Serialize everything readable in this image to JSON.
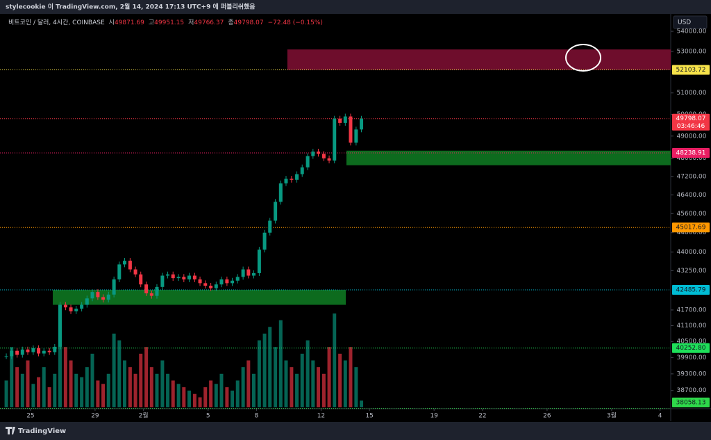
{
  "header": {
    "text": "stylecookie 이 TradingView.com, 2월 14, 2024 17:13 UTC+9 에 퍼블리쉬했음"
  },
  "footer": {
    "brand": "TradingView"
  },
  "chart_data": {
    "type": "candlestick",
    "symbol": "비트코인 / 달러, 4시간, COINBASE",
    "ohlc": [
      {
        "label": "시",
        "value": 49871.69
      },
      {
        "label": "고",
        "value": 49951.15
      },
      {
        "label": "저",
        "value": 49766.37
      },
      {
        "label": "종",
        "value": 49798.07
      }
    ],
    "change": "−72.48 (−0.15%)",
    "currency": "USD",
    "countdown": "03:46:46",
    "up_color": "#089981",
    "down_color": "#f23645",
    "log_scale": true,
    "xlim": [
      -1.89,
      39.66
    ],
    "ylim": [
      38050,
      54880
    ],
    "xticks": [
      {
        "value": 0,
        "label": "25"
      },
      {
        "value": 4,
        "label": "29"
      },
      {
        "value": 7,
        "label": "2월"
      },
      {
        "value": 11,
        "label": "5"
      },
      {
        "value": 14,
        "label": "8"
      },
      {
        "value": 18,
        "label": "12"
      },
      {
        "value": 21,
        "label": "15"
      },
      {
        "value": 25,
        "label": "19"
      },
      {
        "value": 28,
        "label": "22"
      },
      {
        "value": 32,
        "label": "26"
      },
      {
        "value": 36,
        "label": "3월"
      },
      {
        "value": 39,
        "label": "4"
      }
    ],
    "yticks": [
      {
        "value": 54000,
        "label": "54000.00"
      },
      {
        "value": 53000,
        "label": "53000.00"
      },
      {
        "value": 51000,
        "label": "51000.00"
      },
      {
        "value": 50000,
        "label": "50000.00"
      },
      {
        "value": 49000,
        "label": "49000.00"
      },
      {
        "value": 48000,
        "label": "48000.00"
      },
      {
        "value": 47200,
        "label": "47200.00"
      },
      {
        "value": 46400,
        "label": "46400.00"
      },
      {
        "value": 45600,
        "label": "45600.00"
      },
      {
        "value": 44800,
        "label": "44800.00"
      },
      {
        "value": 44000,
        "label": "44000.00"
      },
      {
        "value": 43250,
        "label": "43250.00"
      },
      {
        "value": 41700,
        "label": "41700.00"
      },
      {
        "value": 41100,
        "label": "41100.00"
      },
      {
        "value": 40500,
        "label": "40500.00"
      },
      {
        "value": 39900,
        "label": "39900.00"
      },
      {
        "value": 39300,
        "label": "39300.00"
      },
      {
        "value": 38700,
        "label": "38700.00"
      }
    ],
    "x": [
      -1.5,
      -1.17,
      -0.83,
      -0.5,
      -0.17,
      0.17,
      0.5,
      0.83,
      1.17,
      1.5,
      1.83,
      2.17,
      2.5,
      2.83,
      3.17,
      3.5,
      3.83,
      4.17,
      4.5,
      4.83,
      5.17,
      5.5,
      5.83,
      6.17,
      6.5,
      6.83,
      7.17,
      7.5,
      7.83,
      8.17,
      8.5,
      8.83,
      9.17,
      9.5,
      9.83,
      10.17,
      10.5,
      10.83,
      11.17,
      11.5,
      11.83,
      12.17,
      12.5,
      12.83,
      13.17,
      13.5,
      13.83,
      14.17,
      14.5,
      14.83,
      15.17,
      15.5,
      15.83,
      16.17,
      16.5,
      16.83,
      17.17,
      17.5,
      17.83,
      18.17,
      18.5,
      18.83,
      19.17,
      19.5,
      19.83,
      20.17,
      20.5
    ],
    "close": [
      39950,
      40150,
      40000,
      40200,
      40100,
      40250,
      40050,
      40150,
      40100,
      40300,
      41900,
      41800,
      41650,
      41750,
      41900,
      42150,
      42400,
      42200,
      42100,
      42300,
      42900,
      43500,
      43650,
      43300,
      43100,
      42700,
      42350,
      42250,
      42600,
      43050,
      43100,
      42950,
      43000,
      42900,
      43050,
      42900,
      42750,
      42650,
      42550,
      42700,
      42900,
      42750,
      42850,
      43000,
      43300,
      43050,
      43150,
      44100,
      44800,
      45300,
      46100,
      46900,
      47100,
      47050,
      47300,
      47600,
      48100,
      48300,
      48200,
      48000,
      47900,
      49800,
      49600,
      49900,
      48700,
      49300,
      49798.07
    ],
    "volume": [
      400,
      900,
      600,
      500,
      700,
      350,
      450,
      600,
      300,
      500,
      1300,
      900,
      700,
      500,
      450,
      600,
      800,
      400,
      350,
      500,
      1100,
      1000,
      700,
      600,
      500,
      800,
      900,
      600,
      500,
      700,
      500,
      400,
      350,
      300,
      250,
      200,
      150,
      300,
      400,
      350,
      500,
      300,
      250,
      400,
      600,
      700,
      500,
      1000,
      1100,
      1200,
      900,
      1300,
      700,
      600,
      500,
      800,
      1000,
      700,
      600,
      500,
      900,
      1400,
      800,
      700,
      900,
      600,
      100
    ],
    "price_lines": [
      {
        "value": 52103.72,
        "label": "52103.72",
        "color": "#f7e34a",
        "text_color": "#131722"
      },
      {
        "value": 49798.07,
        "label": "49798.07",
        "color": "#f23645",
        "text_color": "#ffffff"
      },
      {
        "value": 48238.91,
        "label": "48238.91",
        "color": "#e91e63",
        "text_color": "#ffffff"
      },
      {
        "value": 45017.69,
        "label": "45017.69",
        "color": "#ff9800",
        "text_color": "#131722"
      },
      {
        "value": 42485.79,
        "label": "42485.79",
        "color": "#00bcd4",
        "text_color": "#131722"
      },
      {
        "value": 40252.8,
        "label": "40252.80",
        "color": "#1ee05a",
        "text_color": "#131722"
      },
      {
        "value": 38058.13,
        "label": "38058.13",
        "color": "#2ed84a",
        "text_color": "#131722"
      }
    ],
    "zones": [
      {
        "x": [
          15.91,
          39.66
        ],
        "y": [
          52100,
          53100
        ],
        "color": "#6e0d2c"
      },
      {
        "x": [
          19.57,
          39.66
        ],
        "y": [
          47692,
          48341
        ],
        "color": "#0d6b1e"
      },
      {
        "x": [
          1.38,
          19.53
        ],
        "y": [
          41900,
          42485
        ],
        "color": "#0d6b1e"
      }
    ]
  }
}
